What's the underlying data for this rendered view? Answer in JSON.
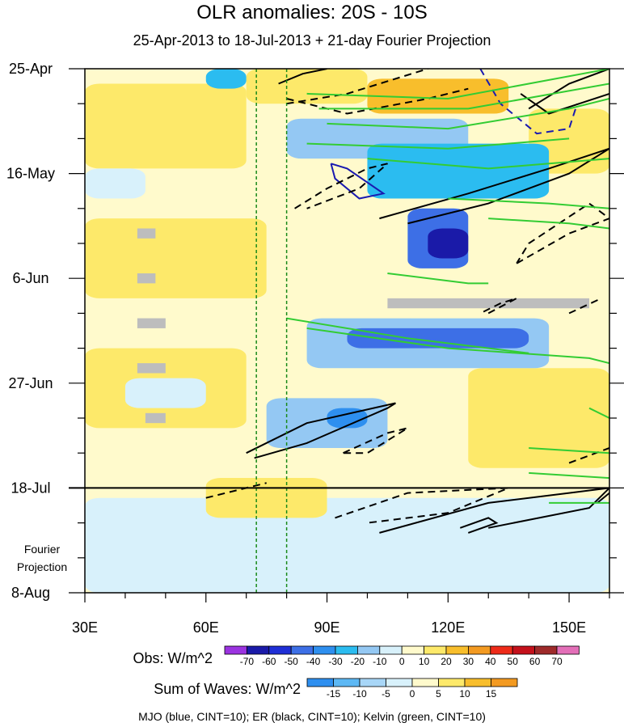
{
  "chart_data": {
    "type": "heatmap",
    "title": "OLR anomalies: 20S - 10S",
    "subtitle": "25-Apr-2013 to 18-Jul-2013 + 21-day Fourier Projection",
    "x_ticks": [
      "30E",
      "60E",
      "90E",
      "120E",
      "150E"
    ],
    "x_tick_values": [
      30,
      60,
      90,
      120,
      150
    ],
    "xlim": [
      30,
      160
    ],
    "y_ticks": [
      "25-Apr",
      "16-May",
      "6-Jun",
      "27-Jun",
      "18-Jul",
      "8-Aug"
    ],
    "y_tick_days": [
      0,
      21,
      42,
      63,
      84,
      105
    ],
    "ylim_days": [
      0,
      105
    ],
    "observation_end_day": 84,
    "projection_label": [
      "Fourier",
      "Projection"
    ],
    "dashed_reference_lines_lon": [
      72.5,
      80
    ],
    "obs_legend": {
      "label": "Obs: W/m^2",
      "levels": [
        "-70",
        "-60",
        "-50",
        "-40",
        "-30",
        "-20",
        "-10",
        "0",
        "10",
        "20",
        "30",
        "40",
        "50",
        "60",
        "70"
      ],
      "colors": [
        "#9b33e0",
        "#1a1aa8",
        "#1f2fd6",
        "#3d6fe6",
        "#2e8fef",
        "#2bbcf0",
        "#94c8f3",
        "#d8f1fb",
        "#fffacc",
        "#fde96a",
        "#f8be2c",
        "#f39a21",
        "#ee2b19",
        "#c4111b",
        "#9e2a2a",
        "#e36fb8"
      ]
    },
    "wave_legend": {
      "label": "Sum of Waves: W/m^2",
      "levels": [
        "-15",
        "-10",
        "-5",
        "0",
        "5",
        "10",
        "15"
      ],
      "colors": [
        "#2e8fef",
        "#5db8f4",
        "#a8d6f7",
        "#d8f1fb",
        "#fffacc",
        "#fde96a",
        "#f8be2c",
        "#f39a21"
      ]
    },
    "heatmap_zones": [
      {
        "lon0": 30,
        "lon1": 160,
        "day0": 0,
        "day1": 105,
        "level": 0
      },
      {
        "lon0": 30,
        "lon1": 160,
        "day0": 86,
        "day1": 105,
        "level": -5
      },
      {
        "lon0": 30,
        "lon1": 70,
        "day0": 3,
        "day1": 20,
        "level": 10
      },
      {
        "lon0": 70,
        "lon1": 100,
        "day0": 0,
        "day1": 7,
        "level": 15
      },
      {
        "lon0": 100,
        "lon1": 135,
        "day0": 2,
        "day1": 9,
        "level": 20
      },
      {
        "lon0": 140,
        "lon1": 160,
        "day0": 8,
        "day1": 21,
        "level": 15
      },
      {
        "lon0": 30,
        "lon1": 75,
        "day0": 30,
        "day1": 46,
        "level": 10
      },
      {
        "lon0": 30,
        "lon1": 70,
        "day0": 56,
        "day1": 72,
        "level": 10
      },
      {
        "lon0": 125,
        "lon1": 160,
        "day0": 60,
        "day1": 80,
        "level": 10
      },
      {
        "lon0": 60,
        "lon1": 90,
        "day0": 82,
        "day1": 90,
        "level": 10
      },
      {
        "lon0": 30,
        "lon1": 45,
        "day0": 20,
        "day1": 26,
        "level": -10
      },
      {
        "lon0": 40,
        "lon1": 60,
        "day0": 62,
        "day1": 68,
        "level": -10
      },
      {
        "lon0": 80,
        "lon1": 125,
        "day0": 10,
        "day1": 18,
        "level": -20
      },
      {
        "lon0": 100,
        "lon1": 145,
        "day0": 15,
        "day1": 26,
        "level": -30
      },
      {
        "lon0": 110,
        "lon1": 125,
        "day0": 28,
        "day1": 40,
        "level": -50
      },
      {
        "lon0": 115,
        "lon1": 125,
        "day0": 32,
        "day1": 38,
        "level": -70
      },
      {
        "lon0": 85,
        "lon1": 145,
        "day0": 50,
        "day1": 60,
        "level": -20
      },
      {
        "lon0": 95,
        "lon1": 140,
        "day0": 52,
        "day1": 56,
        "level": -50
      },
      {
        "lon0": 75,
        "lon1": 105,
        "day0": 66,
        "day1": 76,
        "level": -20
      },
      {
        "lon0": 90,
        "lon1": 100,
        "day0": 68,
        "day1": 72,
        "level": -40
      },
      {
        "lon0": 60,
        "lon1": 70,
        "day0": 0,
        "day1": 4,
        "level": -30
      }
    ],
    "missing_data_boxes": [
      {
        "lon0": 43,
        "lon1": 47.5,
        "day0": 32,
        "day1": 34
      },
      {
        "lon0": 43,
        "lon1": 47.5,
        "day0": 41,
        "day1": 43
      },
      {
        "lon0": 43,
        "lon1": 50,
        "day0": 50,
        "day1": 52
      },
      {
        "lon0": 43,
        "lon1": 50,
        "day0": 59,
        "day1": 61
      },
      {
        "lon0": 45,
        "lon1": 50,
        "day0": 69,
        "day1": 71
      },
      {
        "lon0": 105,
        "lon1": 155,
        "day0": 46,
        "day1": 48
      }
    ],
    "contours": [
      {
        "wave": "MJO",
        "color": "#1a1ab0",
        "dashed": false,
        "points": [
          [
            91,
            19
          ],
          [
            95,
            20
          ],
          [
            104,
            25
          ],
          [
            98,
            26
          ],
          [
            92,
            22
          ],
          [
            91,
            19
          ]
        ]
      },
      {
        "wave": "MJO",
        "color": "#1a1ab0",
        "dashed": true,
        "points": [
          [
            128,
            0
          ],
          [
            133,
            7
          ],
          [
            142,
            13
          ],
          [
            150,
            12
          ],
          [
            152,
            7
          ]
        ]
      },
      {
        "wave": "ER",
        "color": "#000000",
        "dashed": false,
        "points": [
          [
            78,
            3
          ],
          [
            84,
            1
          ],
          [
            90,
            0
          ]
        ]
      },
      {
        "wave": "ER",
        "color": "#000000",
        "dashed": true,
        "points": [
          [
            80,
            7
          ],
          [
            95,
            5
          ],
          [
            115,
            0
          ]
        ]
      },
      {
        "wave": "ER",
        "color": "#000000",
        "dashed": true,
        "points": [
          [
            80,
            6
          ],
          [
            95,
            9
          ],
          [
            115,
            6
          ],
          [
            125,
            4
          ]
        ]
      },
      {
        "wave": "ER",
        "color": "#000000",
        "dashed": false,
        "points": [
          [
            140,
            8
          ],
          [
            150,
            3
          ],
          [
            160,
            0
          ]
        ]
      },
      {
        "wave": "ER",
        "color": "#000000",
        "dashed": false,
        "points": [
          [
            138,
            5
          ],
          [
            145,
            9
          ],
          [
            160,
            5
          ]
        ]
      },
      {
        "wave": "ER",
        "color": "#000000",
        "dashed": true,
        "points": [
          [
            82,
            28
          ],
          [
            90,
            24
          ],
          [
            100,
            20
          ],
          [
            105,
            19
          ],
          [
            98,
            24
          ],
          [
            85,
            28
          ]
        ]
      },
      {
        "wave": "ER",
        "color": "#000000",
        "dashed": false,
        "points": [
          [
            103,
            30
          ],
          [
            125,
            25
          ],
          [
            145,
            20
          ],
          [
            160,
            16
          ],
          [
            150,
            21
          ],
          [
            130,
            27
          ],
          [
            110,
            31
          ]
        ]
      },
      {
        "wave": "ER",
        "color": "#000000",
        "dashed": true,
        "points": [
          [
            137,
            39
          ],
          [
            150,
            33
          ],
          [
            160,
            30
          ],
          [
            155,
            27
          ],
          [
            140,
            35
          ],
          [
            137,
            39
          ]
        ]
      },
      {
        "wave": "ER",
        "color": "#000000",
        "dashed": true,
        "points": [
          [
            130,
            49
          ],
          [
            137,
            46
          ],
          [
            133,
            47
          ],
          [
            128,
            49
          ]
        ]
      },
      {
        "wave": "ER",
        "color": "#000000",
        "dashed": true,
        "points": [
          [
            150,
            49
          ],
          [
            158,
            46
          ]
        ]
      },
      {
        "wave": "ER",
        "color": "#000000",
        "dashed": false,
        "points": [
          [
            70,
            77
          ],
          [
            85,
            71
          ],
          [
            107,
            67
          ],
          [
            105,
            68
          ],
          [
            85,
            75
          ],
          [
            72,
            78
          ]
        ]
      },
      {
        "wave": "ER",
        "color": "#000000",
        "dashed": true,
        "points": [
          [
            94,
            77
          ],
          [
            105,
            73
          ],
          [
            110,
            72
          ],
          [
            100,
            77
          ],
          [
            94,
            77
          ]
        ]
      },
      {
        "wave": "ER",
        "color": "#000000",
        "dashed": true,
        "points": [
          [
            150,
            79
          ],
          [
            160,
            76
          ]
        ]
      },
      {
        "wave": "ER",
        "color": "#000000",
        "dashed": true,
        "points": [
          [
            60,
            86
          ],
          [
            70,
            84
          ],
          [
            75,
            83
          ]
        ]
      },
      {
        "wave": "ER",
        "color": "#000000",
        "dashed": true,
        "points": [
          [
            92,
            90
          ],
          [
            110,
            85
          ],
          [
            135,
            84
          ],
          [
            120,
            89
          ],
          [
            100,
            91
          ]
        ]
      },
      {
        "wave": "ER",
        "color": "#000000",
        "dashed": false,
        "points": [
          [
            103,
            93
          ],
          [
            130,
            87
          ],
          [
            150,
            85
          ],
          [
            160,
            84
          ],
          [
            155,
            88
          ],
          [
            130,
            92
          ]
        ]
      },
      {
        "wave": "ER",
        "color": "#000000",
        "dashed": false,
        "points": [
          [
            123,
            92
          ],
          [
            130,
            90
          ],
          [
            132,
            91
          ],
          [
            125,
            93
          ]
        ]
      },
      {
        "wave": "ER",
        "color": "#000000",
        "dashed": false,
        "points": [
          [
            157,
            87
          ],
          [
            160,
            85
          ]
        ]
      },
      {
        "wave": "Kelvin",
        "color": "#33cc33",
        "dashed": false,
        "points": [
          [
            85,
            5
          ],
          [
            120,
            6
          ],
          [
            160,
            0
          ]
        ]
      },
      {
        "wave": "Kelvin",
        "color": "#33cc33",
        "dashed": false,
        "points": [
          [
            88,
            8
          ],
          [
            125,
            8
          ],
          [
            160,
            3
          ]
        ]
      },
      {
        "wave": "Kelvin",
        "color": "#33cc33",
        "dashed": false,
        "points": [
          [
            90,
            11
          ],
          [
            120,
            12
          ],
          [
            150,
            8
          ],
          [
            160,
            6
          ]
        ]
      },
      {
        "wave": "Kelvin",
        "color": "#33cc33",
        "dashed": false,
        "points": [
          [
            85,
            15
          ],
          [
            120,
            16
          ],
          [
            150,
            14
          ]
        ]
      },
      {
        "wave": "Kelvin",
        "color": "#33cc33",
        "dashed": false,
        "points": [
          [
            100,
            18
          ],
          [
            130,
            20
          ],
          [
            160,
            18
          ]
        ]
      },
      {
        "wave": "Kelvin",
        "color": "#33cc33",
        "dashed": false,
        "points": [
          [
            120,
            26
          ],
          [
            145,
            27
          ],
          [
            160,
            28
          ]
        ]
      },
      {
        "wave": "Kelvin",
        "color": "#33cc33",
        "dashed": false,
        "points": [
          [
            130,
            30
          ],
          [
            150,
            31
          ],
          [
            160,
            32
          ]
        ]
      },
      {
        "wave": "Kelvin",
        "color": "#33cc33",
        "dashed": false,
        "points": [
          [
            105,
            41
          ],
          [
            125,
            43
          ],
          [
            130,
            43
          ]
        ]
      },
      {
        "wave": "Kelvin",
        "color": "#33cc33",
        "dashed": false,
        "points": [
          [
            85,
            52
          ],
          [
            120,
            56
          ],
          [
            155,
            58
          ],
          [
            160,
            59
          ]
        ]
      },
      {
        "wave": "Kelvin",
        "color": "#33cc33",
        "dashed": false,
        "points": [
          [
            80,
            50
          ],
          [
            110,
            54
          ],
          [
            140,
            57
          ]
        ]
      },
      {
        "wave": "Kelvin",
        "color": "#33cc33",
        "dashed": false,
        "points": [
          [
            140,
            76
          ],
          [
            160,
            77
          ]
        ]
      },
      {
        "wave": "Kelvin",
        "color": "#33cc33",
        "dashed": false,
        "points": [
          [
            140,
            81
          ],
          [
            160,
            82
          ]
        ]
      },
      {
        "wave": "Kelvin",
        "color": "#33cc33",
        "dashed": false,
        "points": [
          [
            145,
            87
          ],
          [
            160,
            87
          ]
        ]
      },
      {
        "wave": "Kelvin",
        "color": "#33cc33",
        "dashed": false,
        "points": [
          [
            155,
            68
          ],
          [
            160,
            70
          ]
        ]
      }
    ],
    "footer": "MJO (blue, CINT=10); ER (black, CINT=10); Kelvin (green, CINT=10)"
  }
}
